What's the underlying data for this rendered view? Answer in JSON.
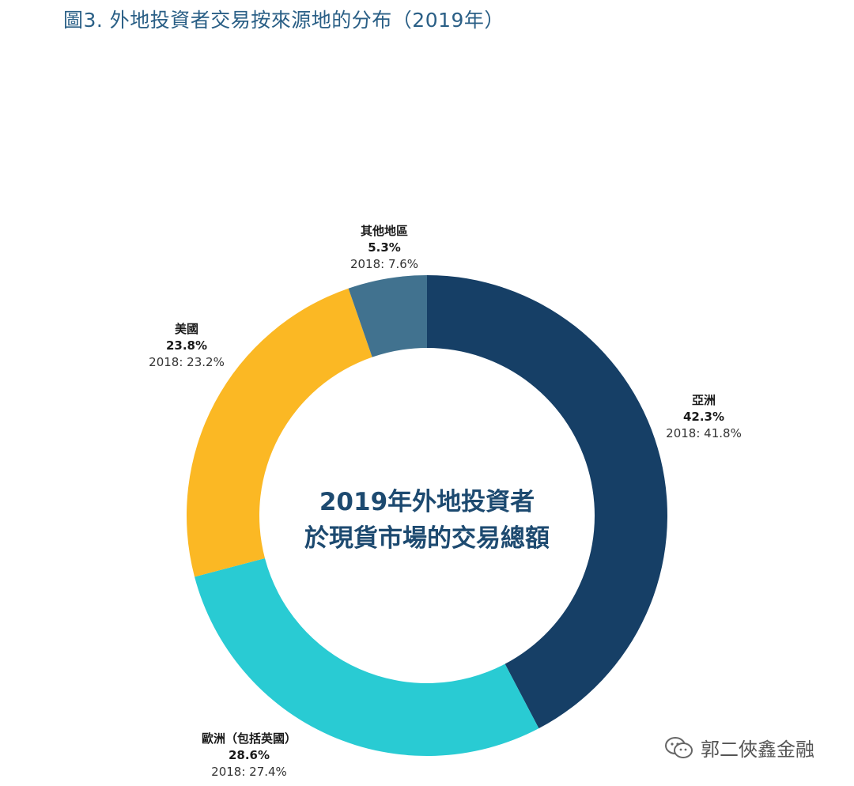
{
  "title": "圖3. 外地投資者交易按來源地的分布（2019年）",
  "chart_data": {
    "type": "pie",
    "donut": true,
    "center_label": [
      "2019年外地投資者",
      "於現貨市場的交易總額"
    ],
    "slices": [
      {
        "name": "亞洲",
        "value": 42.3,
        "value_label": "42.3%",
        "prev_label": "2018: 41.8%",
        "color": "#163f66"
      },
      {
        "name": "歐洲（包括英國）",
        "value": 28.6,
        "value_label": "28.6%",
        "prev_label": "2018: 27.4%",
        "color": "#29cbd3"
      },
      {
        "name": "美國",
        "value": 23.8,
        "value_label": "23.8%",
        "prev_label": "2018: 23.2%",
        "color": "#fbb824"
      },
      {
        "name": "其他地區",
        "value": 5.3,
        "value_label": "5.3%",
        "prev_label": "2018: 7.6%",
        "color": "#41728f"
      }
    ]
  },
  "watermark": {
    "text": "郭二俠鑫金融",
    "icon": "wechat-icon"
  }
}
